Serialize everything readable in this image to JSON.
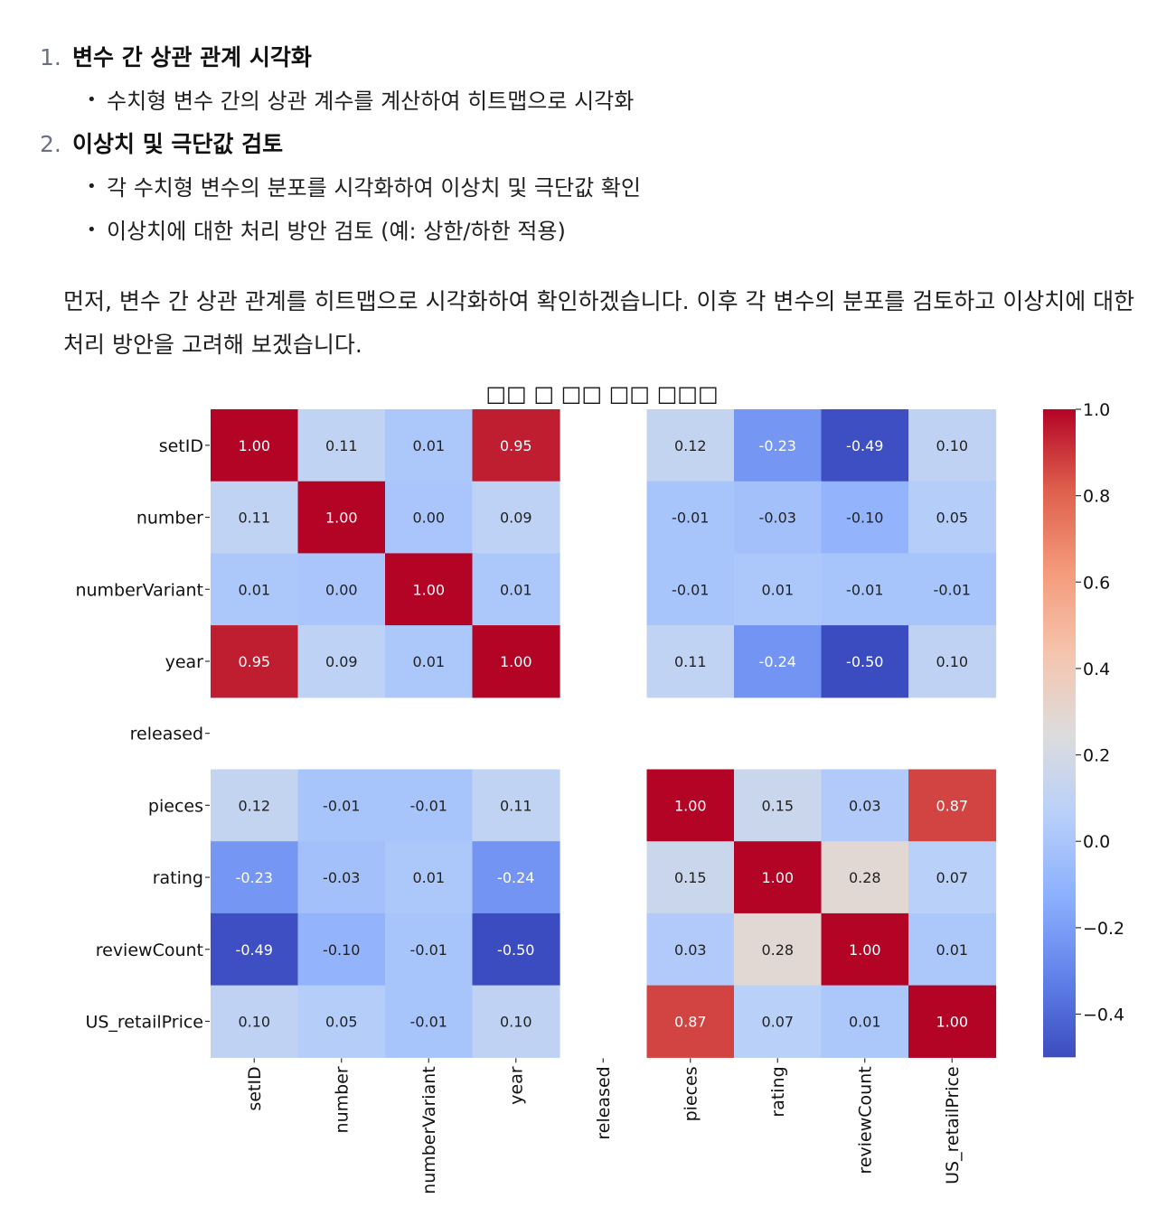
{
  "doc": {
    "steps": [
      {
        "num": "1.",
        "title": "변수 간 상관 관계 시각화",
        "bullets": [
          "수치형 변수 간의 상관 계수를 계산하여 히트맵으로 시각화"
        ]
      },
      {
        "num": "2.",
        "title": "이상치 및 극단값 검토",
        "bullets": [
          "각 수치형 변수의 분포를 시각화하여 이상치 및 극단값 확인",
          "이상치에 대한 처리 방안 검토 (예: 상한/하한 적용)"
        ]
      }
    ],
    "paragraph_line1": "먼저, 변수 간 상관 관계를 히트맵으로 시각화하여 확인하겠습니다. 이후 각 변수의 분포를 검토하고 이상치에 대한",
    "paragraph_line2": "처리 방안을 고려해 보겠습니다."
  },
  "chart_data": {
    "type": "heatmap",
    "title": "□□ □ □□ □□ □□□",
    "variables": [
      "setID",
      "number",
      "numberVariant",
      "year",
      "released",
      "pieces",
      "rating",
      "reviewCount",
      "US_retailPrice"
    ],
    "matrix": [
      [
        1.0,
        0.11,
        0.01,
        0.95,
        null,
        0.12,
        -0.23,
        -0.49,
        0.1
      ],
      [
        0.11,
        1.0,
        0.0,
        0.09,
        null,
        -0.01,
        -0.03,
        -0.1,
        0.05
      ],
      [
        0.01,
        0.0,
        1.0,
        0.01,
        null,
        -0.01,
        0.01,
        -0.01,
        -0.01
      ],
      [
        0.95,
        0.09,
        0.01,
        1.0,
        null,
        0.11,
        -0.24,
        -0.5,
        0.1
      ],
      [
        null,
        null,
        null,
        null,
        null,
        null,
        null,
        null,
        null
      ],
      [
        0.12,
        -0.01,
        -0.01,
        0.11,
        null,
        1.0,
        0.15,
        0.03,
        0.87
      ],
      [
        -0.23,
        -0.03,
        0.01,
        -0.24,
        null,
        0.15,
        1.0,
        0.28,
        0.07
      ],
      [
        -0.49,
        -0.1,
        -0.01,
        -0.5,
        null,
        0.03,
        0.28,
        1.0,
        0.01
      ],
      [
        0.1,
        0.05,
        -0.01,
        0.1,
        null,
        0.87,
        0.07,
        0.01,
        1.0
      ]
    ],
    "colormap": "coolwarm",
    "vmin": -0.5,
    "vmax": 1.0,
    "colorbar_ticks": [
      "1.0",
      "0.8",
      "0.6",
      "0.4",
      "0.2",
      "0.0",
      "−0.2",
      "−0.4"
    ],
    "colorbar_tick_values": [
      1.0,
      0.8,
      0.6,
      0.4,
      0.2,
      0.0,
      -0.2,
      -0.4
    ],
    "annotation_format": "0.00"
  }
}
